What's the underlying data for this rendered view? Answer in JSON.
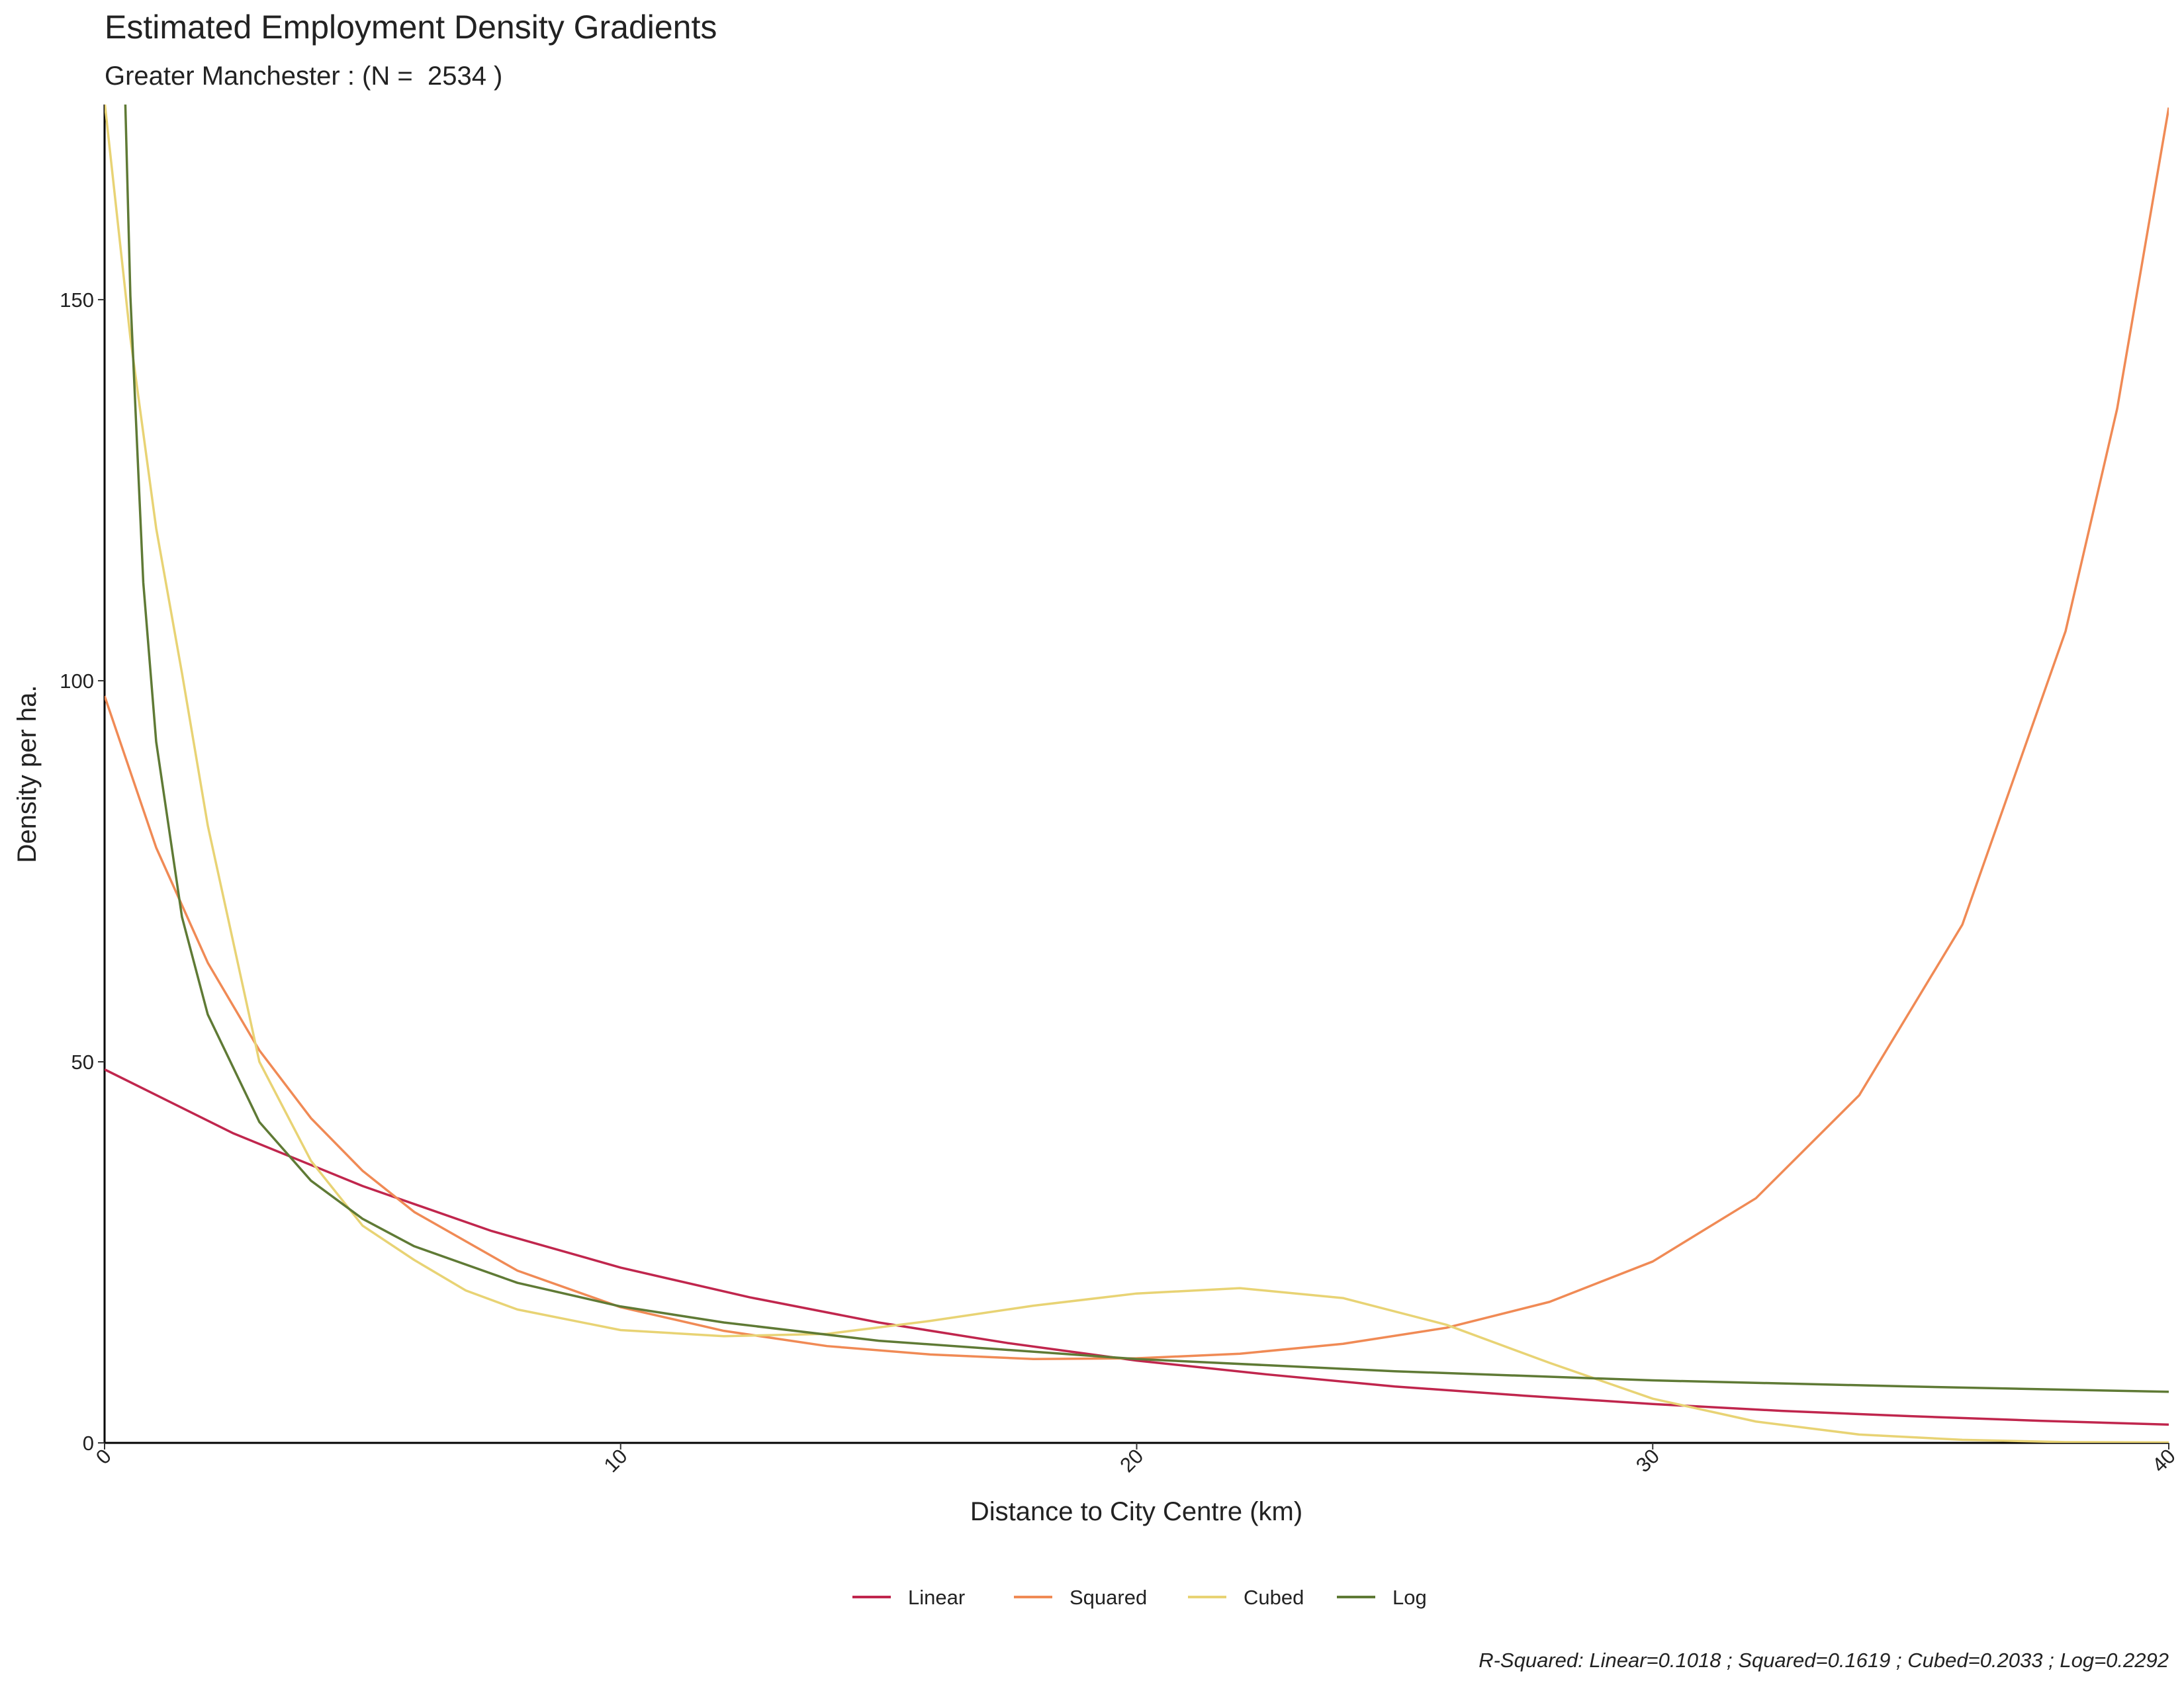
{
  "chart_data": {
    "type": "line",
    "title": "Estimated Employment Density Gradients",
    "subtitle": "Greater Manchester : (N =  2534 )",
    "x_label": "Distance to City Centre (km)",
    "y_label": "Density per ha.",
    "caption": "R-Squared: Linear=0.1018 ; Squared=0.1619 ; Cubed=0.2033 ; Log=0.2292",
    "xlim": [
      0,
      40
    ],
    "xticks": [
      0,
      10,
      20,
      30,
      40
    ],
    "ylim": [
      0,
      175.6
    ],
    "yticks": [
      0,
      50,
      100,
      150
    ],
    "grid": false,
    "legend": "bottom",
    "series": [
      {
        "name": "Linear",
        "color": "#c0264d",
        "x": [
          0,
          2.5,
          5,
          7.5,
          10,
          12.5,
          15,
          17.5,
          20,
          22.5,
          25,
          27.5,
          30,
          32.5,
          35,
          37.5,
          40
        ],
        "values": [
          49,
          40.6,
          33.7,
          27.8,
          23.0,
          19.1,
          15.8,
          13.1,
          10.8,
          9.0,
          7.4,
          6.2,
          5.1,
          4.2,
          3.5,
          2.9,
          2.4
        ]
      },
      {
        "name": "Squared",
        "color": "#f08a55",
        "x": [
          0,
          1,
          2,
          3,
          4,
          5,
          6,
          8,
          10,
          12,
          14,
          16,
          18,
          20,
          22,
          24,
          26,
          28,
          30,
          32,
          34,
          36,
          38,
          39,
          40
        ],
        "values": [
          98,
          78.1,
          63.0,
          51.5,
          42.6,
          35.7,
          30.3,
          22.6,
          17.8,
          14.7,
          12.7,
          11.6,
          11.0,
          11.1,
          11.7,
          13.0,
          15.1,
          18.5,
          23.8,
          32.1,
          45.6,
          68.0,
          106.5,
          135.7,
          175.2
        ]
      },
      {
        "name": "Cubed",
        "color": "#e8d374",
        "x": [
          0,
          0.5,
          1,
          1.5,
          2,
          3,
          4,
          5,
          6,
          7,
          8,
          10,
          12,
          14,
          16,
          18,
          20,
          22,
          24,
          26,
          28,
          30,
          32,
          34,
          36,
          38,
          40
        ],
        "values": [
          176,
          145,
          120,
          101,
          81,
          50,
          37,
          28.5,
          24,
          20,
          17.5,
          14.8,
          14,
          14.3,
          16,
          18,
          19.6,
          20.3,
          19,
          15.5,
          10.5,
          5.8,
          2.8,
          1.1,
          0.4,
          0.1,
          0.05
        ]
      },
      {
        "name": "Log",
        "color": "#5f7a35",
        "x": [
          0.4,
          0.5,
          0.75,
          1,
          1.5,
          2,
          3,
          4,
          5,
          6,
          8,
          10,
          12,
          15,
          20,
          25,
          30,
          35,
          40
        ],
        "values": [
          176.3,
          150.5,
          112.9,
          92,
          69.0,
          56.2,
          42.1,
          34.4,
          29.4,
          25.8,
          21.0,
          17.9,
          15.8,
          13.4,
          11.0,
          9.4,
          8.2,
          7.4,
          6.7
        ]
      }
    ]
  }
}
